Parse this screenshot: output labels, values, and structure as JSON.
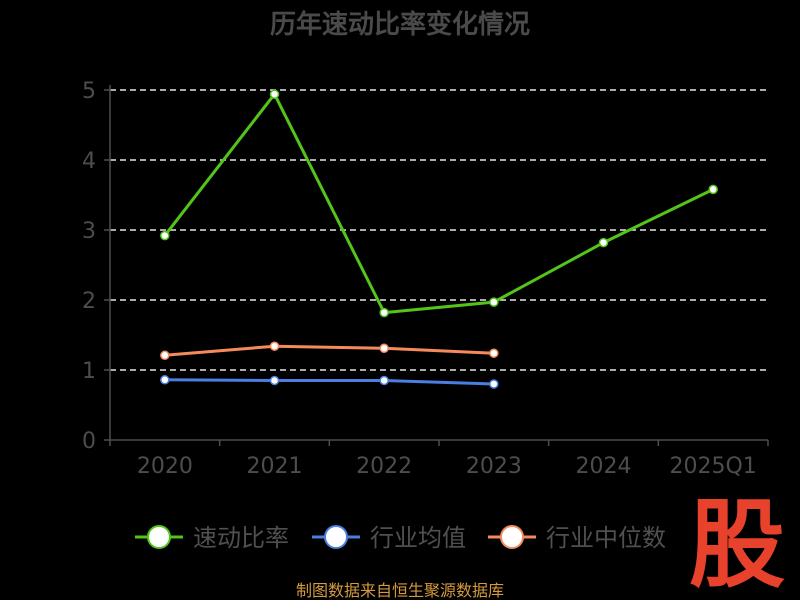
{
  "chart_data": {
    "type": "line",
    "title": "历年速动比率变化情况",
    "categories": [
      "2020",
      "2021",
      "2022",
      "2023",
      "2024",
      "2025Q1"
    ],
    "ylim": [
      0,
      5
    ],
    "yticks": [
      0,
      1,
      2,
      3,
      4,
      5
    ],
    "grid": true,
    "legend_position": "bottom",
    "series": [
      {
        "name": "速动比率",
        "color": "#52c41a",
        "values": [
          2.92,
          4.94,
          1.82,
          1.97,
          2.82,
          3.58
        ]
      },
      {
        "name": "行业均值",
        "color": "#4a7ee0",
        "values": [
          0.86,
          0.85,
          0.85,
          0.8,
          null,
          null
        ]
      },
      {
        "name": "行业中位数",
        "color": "#f58b5b",
        "values": [
          1.21,
          1.34,
          1.31,
          1.24,
          null,
          null
        ]
      }
    ]
  },
  "source_text": "制图数据来自恒生聚源数据库",
  "logo_text": "股"
}
